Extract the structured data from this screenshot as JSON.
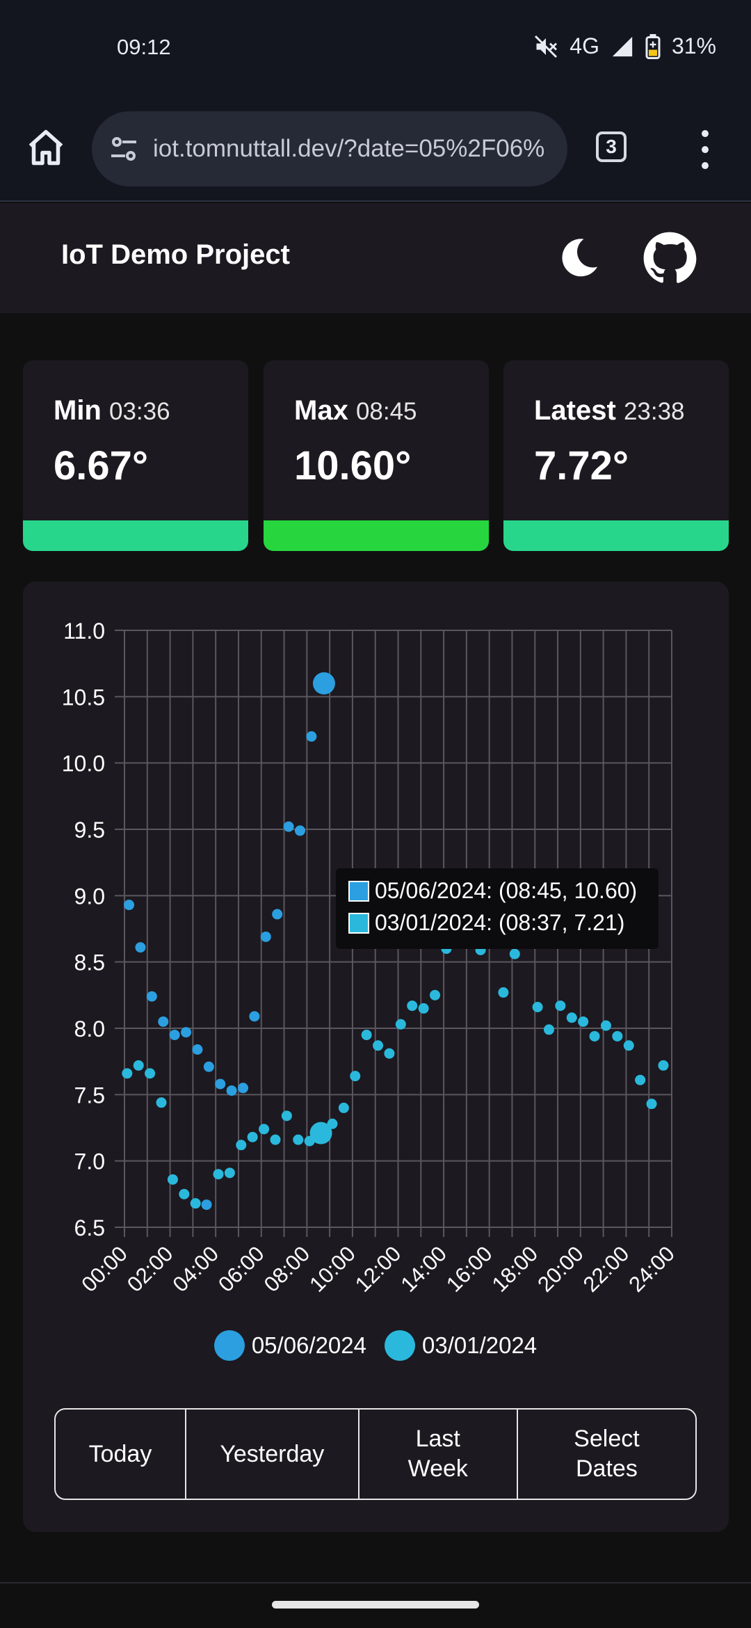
{
  "status_bar": {
    "time": "09:12",
    "network": "4G",
    "battery": "31%"
  },
  "browser": {
    "url": "iot.tomnuttall.dev/?date=05%2F06%",
    "tab_count": "3"
  },
  "header": {
    "title": "IoT Demo Project"
  },
  "stats": [
    {
      "label": "Min",
      "time": "03:36",
      "value": "6.67°",
      "bar_color": "#28d68b"
    },
    {
      "label": "Max",
      "time": "08:45",
      "value": "10.60°",
      "bar_color": "#27d63f"
    },
    {
      "label": "Latest",
      "time": "23:38",
      "value": "7.72°",
      "bar_color": "#28d68b"
    }
  ],
  "tooltip": {
    "line1": "05/06/2024: (08:45, 10.60)",
    "line2": "03/01/2024: (08:37, 7.21)"
  },
  "chart_data": {
    "type": "scatter",
    "title": "",
    "xlabel": "",
    "ylabel": "",
    "xlim": [
      "00:00",
      "24:00"
    ],
    "ylim": [
      6.5,
      11.0
    ],
    "grid": true,
    "legend_position": "bottom",
    "y_ticks": [
      "11.0",
      "10.5",
      "10.0",
      "9.5",
      "9.0",
      "8.5",
      "8.0",
      "7.5",
      "7.0",
      "6.5"
    ],
    "x_ticks": [
      "00:00",
      "02:00",
      "04:00",
      "06:00",
      "08:00",
      "10:00",
      "12:00",
      "14:00",
      "16:00",
      "18:00",
      "20:00",
      "22:00",
      "24:00"
    ],
    "series": [
      {
        "name": "05/06/2024",
        "color": "#2b9fe0",
        "points": [
          [
            "00:12",
            8.93
          ],
          [
            "00:42",
            8.61
          ],
          [
            "01:12",
            8.24
          ],
          [
            "01:42",
            8.05
          ],
          [
            "02:12",
            7.95
          ],
          [
            "02:42",
            7.97
          ],
          [
            "03:12",
            7.84
          ],
          [
            "03:36",
            6.67
          ],
          [
            "03:42",
            7.71
          ],
          [
            "04:12",
            7.58
          ],
          [
            "04:42",
            7.53
          ],
          [
            "05:12",
            7.55
          ],
          [
            "05:42",
            8.09
          ],
          [
            "06:12",
            8.69
          ],
          [
            "06:42",
            8.86
          ],
          [
            "07:12",
            9.52
          ],
          [
            "07:42",
            9.49
          ],
          [
            "08:12",
            10.2
          ],
          [
            "08:45",
            10.6
          ]
        ]
      },
      {
        "name": "03/01/2024",
        "color": "#2ab9dc",
        "points": [
          [
            "00:07",
            7.66
          ],
          [
            "00:37",
            7.72
          ],
          [
            "01:07",
            7.66
          ],
          [
            "01:37",
            7.44
          ],
          [
            "02:07",
            6.86
          ],
          [
            "02:37",
            6.75
          ],
          [
            "03:07",
            6.68
          ],
          [
            "04:07",
            6.9
          ],
          [
            "04:37",
            6.91
          ],
          [
            "05:07",
            7.12
          ],
          [
            "05:37",
            7.18
          ],
          [
            "06:07",
            7.24
          ],
          [
            "06:37",
            7.16
          ],
          [
            "07:07",
            7.34
          ],
          [
            "07:37",
            7.16
          ],
          [
            "08:07",
            7.15
          ],
          [
            "08:37",
            7.21
          ],
          [
            "09:07",
            7.28
          ],
          [
            "09:37",
            7.4
          ],
          [
            "10:07",
            7.64
          ],
          [
            "10:37",
            7.95
          ],
          [
            "11:07",
            7.87
          ],
          [
            "11:37",
            7.81
          ],
          [
            "12:07",
            8.03
          ],
          [
            "12:37",
            8.17
          ],
          [
            "13:07",
            8.15
          ],
          [
            "13:37",
            8.25
          ],
          [
            "14:07",
            8.6
          ],
          [
            "15:07",
            8.88
          ],
          [
            "15:37",
            8.59
          ],
          [
            "16:37",
            8.27
          ],
          [
            "17:07",
            8.56
          ],
          [
            "17:37",
            8.65
          ],
          [
            "18:07",
            8.16
          ],
          [
            "18:37",
            7.99
          ],
          [
            "19:07",
            8.17
          ],
          [
            "19:37",
            8.08
          ],
          [
            "20:07",
            8.05
          ],
          [
            "20:37",
            7.94
          ],
          [
            "21:07",
            8.02
          ],
          [
            "21:37",
            7.94
          ],
          [
            "22:07",
            7.87
          ],
          [
            "22:37",
            7.61
          ],
          [
            "23:07",
            7.43
          ],
          [
            "23:38",
            7.72
          ]
        ]
      }
    ]
  },
  "legend": {
    "item1": "05/06/2024",
    "item2": "03/01/2024"
  },
  "buttons": {
    "today": "Today",
    "yesterday": "Yesterday",
    "last_week": "Last Week",
    "select_dates": "Select Dates"
  }
}
